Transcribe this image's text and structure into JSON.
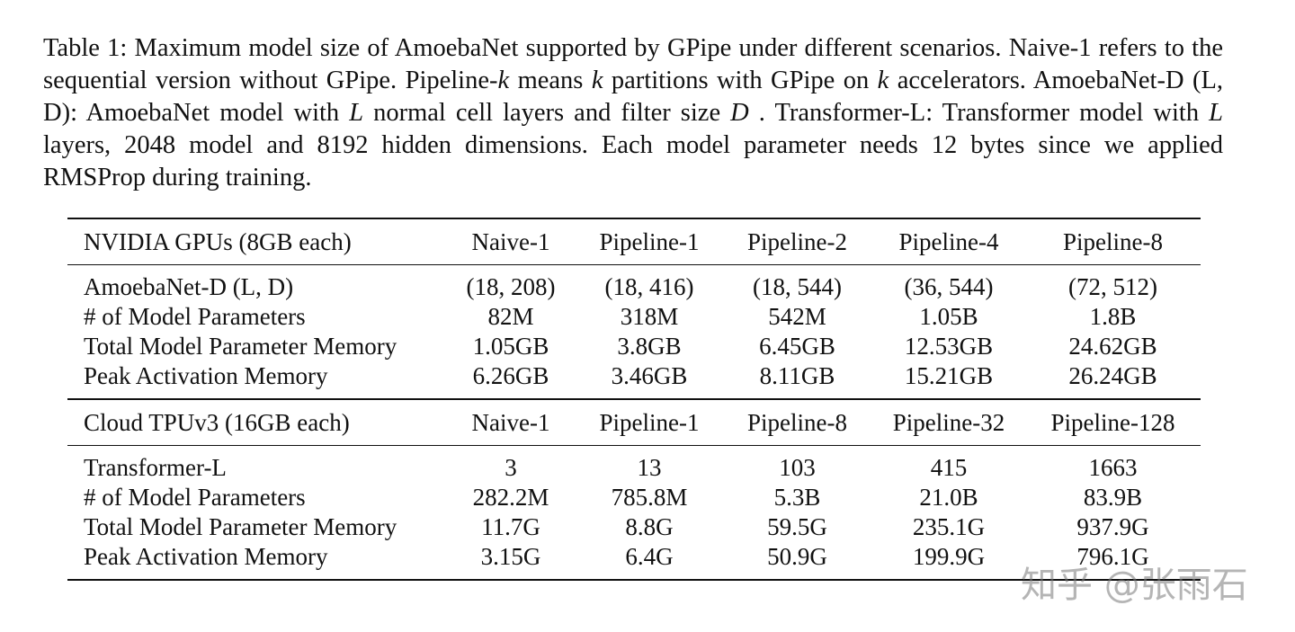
{
  "caption": [
    "Table 1: Maximum model size of AmoebaNet supported by GPipe under different scenarios. Naive-1 refers to the sequential version without GPipe.  Pipeline-",
    "k",
    " means ",
    "k",
    " partitions with GPipe on ",
    "k",
    " accelerators. AmoebaNet-D (L, D): AmoebaNet model with ",
    "L",
    " normal cell layers and filter size ",
    "D",
    " . Transformer-L: Transformer model with ",
    "L",
    " layers, 2048 model and 8192 hidden dimensions. Each model parameter needs 12 bytes since we applied RMSProp during training."
  ],
  "table": {
    "sections": [
      {
        "header": [
          "NVIDIA GPUs (8GB each)",
          "Naive-1",
          "Pipeline-1",
          "Pipeline-2",
          "Pipeline-4",
          "Pipeline-8"
        ],
        "rows": [
          [
            "AmoebaNet-D (L, D)",
            "(18, 208)",
            "(18, 416)",
            "(18, 544)",
            "(36, 544)",
            "(72, 512)"
          ],
          [
            "# of Model Parameters",
            "82M",
            "318M",
            "542M",
            "1.05B",
            "1.8B"
          ],
          [
            "Total Model Parameter Memory",
            "1.05GB",
            "3.8GB",
            "6.45GB",
            "12.53GB",
            "24.62GB"
          ],
          [
            "Peak Activation Memory",
            "6.26GB",
            "3.46GB",
            "8.11GB",
            "15.21GB",
            "26.24GB"
          ]
        ]
      },
      {
        "header": [
          "Cloud TPUv3 (16GB each)",
          "Naive-1",
          "Pipeline-1",
          "Pipeline-8",
          "Pipeline-32",
          "Pipeline-128"
        ],
        "rows": [
          [
            "Transformer-L",
            "3",
            "13",
            "103",
            "415",
            "1663"
          ],
          [
            "# of Model Parameters",
            "282.2M",
            "785.8M",
            "5.3B",
            "21.0B",
            "83.9B"
          ],
          [
            "Total Model Parameter Memory",
            "11.7G",
            "8.8G",
            "59.5G",
            "235.1G",
            "937.9G"
          ],
          [
            "Peak Activation Memory",
            "3.15G",
            "6.4G",
            "50.9G",
            "199.9G",
            "796.1G"
          ]
        ]
      }
    ]
  },
  "watermark": "知乎 @张雨石"
}
